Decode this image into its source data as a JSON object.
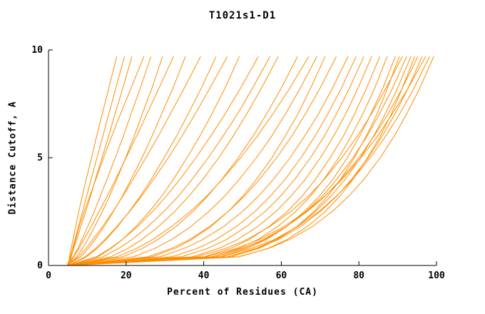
{
  "chart_data": {
    "type": "line",
    "title": "T1021s1-D1",
    "xlabel": "Percent of Residues (CA)",
    "ylabel": "Distance Cutoff, A",
    "xlim": [
      0,
      100
    ],
    "ylim": [
      0,
      10
    ],
    "xticks": [
      0,
      20,
      40,
      60,
      80,
      100
    ],
    "yticks": [
      0,
      5,
      10
    ],
    "grid": false,
    "legend": false,
    "line_color": "#ff8c00",
    "axis_color": "#000000",
    "y_values": [
      0,
      0.4,
      0.8,
      1.2,
      1.8,
      2.5,
      3.2,
      4,
      5,
      6,
      7,
      8.2,
      9.7
    ],
    "series_x": [
      [
        5.2,
        5.4,
        5.8,
        6.3,
        7.0,
        7.8,
        8.7,
        9.7,
        11.1,
        12.4,
        13.8,
        15.5,
        17.6
      ],
      [
        4.8,
        5.6,
        6.2,
        6.8,
        7.7,
        8.8,
        9.8,
        11.0,
        12.5,
        14.0,
        15.5,
        17.3,
        19.6
      ],
      [
        5.0,
        5.8,
        6.5,
        7.3,
        8.3,
        9.6,
        10.8,
        12.1,
        13.8,
        15.5,
        17.1,
        19.1,
        21.5
      ],
      [
        5.5,
        5.9,
        6.4,
        7.0,
        7.9,
        9.2,
        10.6,
        12.2,
        14.2,
        16.3,
        18.5,
        21.2,
        24.6
      ],
      [
        4.9,
        6.4,
        7.6,
        8.6,
        10.1,
        11.8,
        13.3,
        15.1,
        17.2,
        19.3,
        21.2,
        23.6,
        26.4
      ],
      [
        5.1,
        7.3,
        8.8,
        10.1,
        11.9,
        13.9,
        15.7,
        17.6,
        19.9,
        22.1,
        24.1,
        26.6,
        29.4
      ],
      [
        5.3,
        6.5,
        7.9,
        9.1,
        11.0,
        13.0,
        15.1,
        17.3,
        20.0,
        22.7,
        25.3,
        28.4,
        32.2
      ],
      [
        4.7,
        8.3,
        10.3,
        12.0,
        14.3,
        16.7,
        19.0,
        21.3,
        24.1,
        26.7,
        29.1,
        32.0,
        35.3
      ],
      [
        5.0,
        7.7,
        9.7,
        11.4,
        13.9,
        16.6,
        19.1,
        21.8,
        25.1,
        28.3,
        31.3,
        34.9,
        39.2
      ],
      [
        5.2,
        9.8,
        12.6,
        14.8,
        17.8,
        20.8,
        23.6,
        26.5,
        29.8,
        33.0,
        35.9,
        39.3,
        43.2
      ],
      [
        5.2,
        9.4,
        12.2,
        14.5,
        17.6,
        20.9,
        23.9,
        27.1,
        30.9,
        34.4,
        37.7,
        41.5,
        46.1
      ],
      [
        4.8,
        12.7,
        16.2,
        19.0,
        22.5,
        26.0,
        29.1,
        32.2,
        35.7,
        39.0,
        42.0,
        45.4,
        49.2
      ],
      [
        5.0,
        12.3,
        16.0,
        19.0,
        22.9,
        26.8,
        30.3,
        33.9,
        38.0,
        41.8,
        45.4,
        49.4,
        54.1
      ],
      [
        4.8,
        14.0,
        18.2,
        21.5,
        25.6,
        29.7,
        33.4,
        37.0,
        41.2,
        45.0,
        48.6,
        52.5,
        57.1
      ],
      [
        5.1,
        16.0,
        20.6,
        24.0,
        28.3,
        32.5,
        36.1,
        39.8,
        43.9,
        47.6,
        51.0,
        54.8,
        59.2
      ],
      [
        4.9,
        19.1,
        24.3,
        28.1,
        32.8,
        37.2,
        40.9,
        44.7,
        48.9,
        52.7,
        56.1,
        59.9,
        64.2
      ],
      [
        5.0,
        17.6,
        22.8,
        26.8,
        31.7,
        36.5,
        40.7,
        44.8,
        49.5,
        53.8,
        57.7,
        62.1,
        67.1
      ],
      [
        5.0,
        21.9,
        27.5,
        31.7,
        36.7,
        41.3,
        45.3,
        49.2,
        53.6,
        57.5,
        61.0,
        64.8,
        69.2
      ],
      [
        5.1,
        26.7,
        32.7,
        36.9,
        41.8,
        46.3,
        50.0,
        53.6,
        57.6,
        61.0,
        64.2,
        67.5,
        71.3
      ],
      [
        5.2,
        25.6,
        31.8,
        36.3,
        41.5,
        46.3,
        50.4,
        54.4,
        58.8,
        62.7,
        66.1,
        69.9,
        74.2
      ],
      [
        4.8,
        28.7,
        35.1,
        39.7,
        45.1,
        50.0,
        54.0,
        58.0,
        62.3,
        66.0,
        69.5,
        73.1,
        77.2
      ],
      [
        5.0,
        31.8,
        38.5,
        43.1,
        48.4,
        53.2,
        57.1,
        61.0,
        65.1,
        68.7,
        71.9,
        75.4,
        79.3
      ],
      [
        5.1,
        34.3,
        41.1,
        45.8,
        51.0,
        55.8,
        59.7,
        63.5,
        67.5,
        71.1,
        74.1,
        77.5,
        81.3
      ],
      [
        4.9,
        37.1,
        44.0,
        48.7,
        53.9,
        58.6,
        62.4,
        66.2,
        70.1,
        73.5,
        76.5,
        79.7,
        83.3
      ],
      [
        5.0,
        40.1,
        47.0,
        51.7,
        56.8,
        61.5,
        65.3,
        68.8,
        72.6,
        76.0,
        78.8,
        81.9,
        85.4
      ],
      [
        5.2,
        42.1,
        49.2,
        53.9,
        59.0,
        63.7,
        67.4,
        71.0,
        74.8,
        78.0,
        80.9,
        84.0,
        87.3
      ],
      [
        4.8,
        44.3,
        51.4,
        56.1,
        61.4,
        65.9,
        69.7,
        73.3,
        77.0,
        80.2,
        83.0,
        86.1,
        89.4
      ],
      [
        5.0,
        47.1,
        54.4,
        58.9,
        64.0,
        68.4,
        71.9,
        75.3,
        78.8,
        81.9,
        84.6,
        87.3,
        90.4
      ],
      [
        5.1,
        38.1,
        45.8,
        51.1,
        57.0,
        62.4,
        66.9,
        71.1,
        75.6,
        79.6,
        83.1,
        86.9,
        91.2
      ],
      [
        4.9,
        43.1,
        50.6,
        55.7,
        61.3,
        66.3,
        70.5,
        74.3,
        78.5,
        82.1,
        85.2,
        88.6,
        92.3
      ],
      [
        5.0,
        46.1,
        53.6,
        58.5,
        64.0,
        68.8,
        72.7,
        76.5,
        80.4,
        83.8,
        86.7,
        89.9,
        93.4
      ],
      [
        5.2,
        49.1,
        56.7,
        61.4,
        66.7,
        71.3,
        75.0,
        78.5,
        82.2,
        85.5,
        88.3,
        91.1,
        94.4
      ],
      [
        4.8,
        41.9,
        49.9,
        55.3,
        61.3,
        66.7,
        71.2,
        75.4,
        80.0,
        83.9,
        87.4,
        91.1,
        95.2
      ],
      [
        5.0,
        46.1,
        53.9,
        59.2,
        64.9,
        70.0,
        74.2,
        78.1,
        82.4,
        86.0,
        89.2,
        92.6,
        96.3
      ],
      [
        5.1,
        40.4,
        48.6,
        54.3,
        60.6,
        66.4,
        71.1,
        75.7,
        80.5,
        84.8,
        88.5,
        92.6,
        97.2
      ],
      [
        4.9,
        44.5,
        52.5,
        58.1,
        64.2,
        69.7,
        74.1,
        78.4,
        82.9,
        86.9,
        90.4,
        94.1,
        98.2
      ],
      [
        5.0,
        48.9,
        56.9,
        62.1,
        68.0,
        73.1,
        77.3,
        81.3,
        85.5,
        89.1,
        92.2,
        95.6,
        99.3
      ]
    ]
  }
}
